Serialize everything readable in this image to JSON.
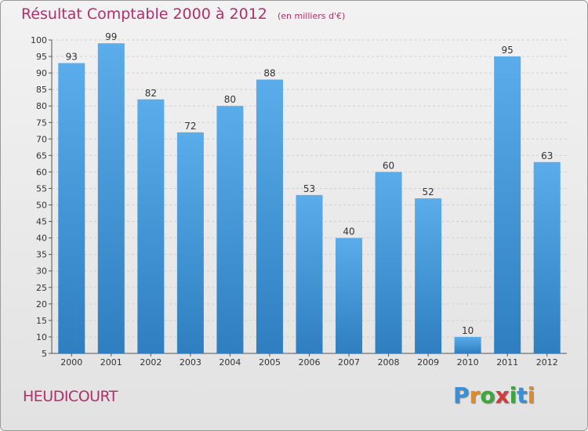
{
  "title": "Résultat Comptable 2000 à 2012",
  "subtitle": "(en milliers d'€)",
  "commune": "HEUDICOURT",
  "logo": {
    "letters": [
      "P",
      "r",
      "o",
      "x",
      "i",
      "t",
      "i"
    ],
    "colors": [
      "#3a8fd6",
      "#e8891b",
      "#3aa83a",
      "#d63a3a",
      "#3aa83a",
      "#3a8fd6",
      "#e8891b"
    ]
  },
  "colors": {
    "title": "#b0306a",
    "bar_light": "#5aacea",
    "bar_dark": "#2f7fc0",
    "grid": "#cfcfcf"
  },
  "chart_data": {
    "type": "bar",
    "categories": [
      "2000",
      "2001",
      "2002",
      "2003",
      "2004",
      "2005",
      "2006",
      "2007",
      "2008",
      "2009",
      "2010",
      "2011",
      "2012"
    ],
    "values": [
      93,
      99,
      82,
      72,
      80,
      88,
      53,
      40,
      60,
      52,
      10,
      95,
      63
    ],
    "ylim": [
      5,
      100
    ],
    "yticks": [
      5,
      10,
      15,
      20,
      25,
      30,
      35,
      40,
      45,
      50,
      55,
      60,
      65,
      70,
      75,
      80,
      85,
      90,
      95,
      100
    ],
    "grid": true,
    "title": "Résultat Comptable 2000 à 2012",
    "xlabel": "",
    "ylabel": ""
  }
}
